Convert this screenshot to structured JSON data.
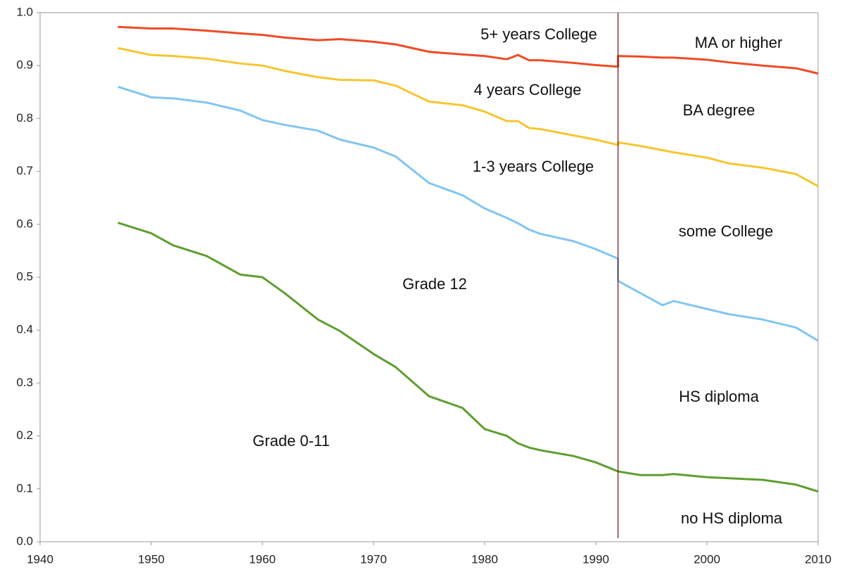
{
  "chart_data": {
    "type": "line",
    "x": [
      1947,
      1950,
      1952,
      1955,
      1958,
      1960,
      1962,
      1965,
      1967,
      1970,
      1972,
      1975,
      1978,
      1980,
      1982,
      1983,
      1984,
      1985,
      1988,
      1990,
      1992,
      1992,
      1994,
      1996,
      1997,
      2000,
      2002,
      2005,
      2008,
      2010
    ],
    "series": [
      {
        "color": "#ee4b26",
        "values": [
          0.973,
          0.97,
          0.97,
          0.966,
          0.961,
          0.958,
          0.953,
          0.948,
          0.95,
          0.945,
          0.94,
          0.926,
          0.921,
          0.918,
          0.912,
          0.92,
          0.91,
          0.91,
          0.905,
          0.901,
          0.898,
          0.918,
          0.917,
          0.915,
          0.915,
          0.911,
          0.906,
          0.9,
          0.895,
          0.885
        ]
      },
      {
        "color": "#f6c630",
        "values": [
          0.933,
          0.92,
          0.918,
          0.913,
          0.904,
          0.9,
          0.89,
          0.878,
          0.873,
          0.872,
          0.862,
          0.832,
          0.825,
          0.813,
          0.795,
          0.795,
          0.782,
          0.78,
          0.768,
          0.76,
          0.75,
          0.755,
          0.748,
          0.74,
          0.736,
          0.726,
          0.715,
          0.707,
          0.695,
          0.672
        ]
      },
      {
        "color": "#82c5f2",
        "values": [
          0.86,
          0.84,
          0.838,
          0.83,
          0.815,
          0.797,
          0.788,
          0.777,
          0.76,
          0.745,
          0.728,
          0.678,
          0.655,
          0.63,
          0.612,
          0.602,
          0.59,
          0.582,
          0.568,
          0.553,
          0.535,
          0.493,
          0.47,
          0.447,
          0.455,
          0.44,
          0.43,
          0.42,
          0.405,
          0.38
        ]
      },
      {
        "color": "#5e9e2f",
        "values": [
          0.603,
          0.583,
          0.56,
          0.54,
          0.505,
          0.5,
          0.47,
          0.42,
          0.398,
          0.355,
          0.33,
          0.275,
          0.253,
          0.213,
          0.2,
          0.186,
          0.178,
          0.173,
          0.162,
          0.15,
          0.133,
          0.133,
          0.126,
          0.126,
          0.128,
          0.122,
          0.12,
          0.117,
          0.108,
          0.095
        ]
      }
    ],
    "reference_line_x": 1992,
    "reference_line_color": "#7a1f1f",
    "xlim": [
      1940,
      2010
    ],
    "xticks": [
      1940,
      1950,
      1960,
      1970,
      1980,
      1990,
      2000,
      2010
    ],
    "ylim": [
      0,
      1
    ],
    "yticks": [
      {
        "value": 0,
        "label": "0.0"
      },
      0.1,
      0.2,
      0.3,
      0.4,
      0.5,
      0.6,
      0.7,
      0.8,
      0.9,
      {
        "value": 1,
        "label": "1.0"
      }
    ],
    "annotations": [
      "5+ years College",
      "MA or higher",
      "4 years College",
      "BA degree",
      "1-3 years College",
      "some College",
      "Grade 12",
      "HS diploma",
      "Grade 0-11",
      "no HS diploma"
    ]
  }
}
